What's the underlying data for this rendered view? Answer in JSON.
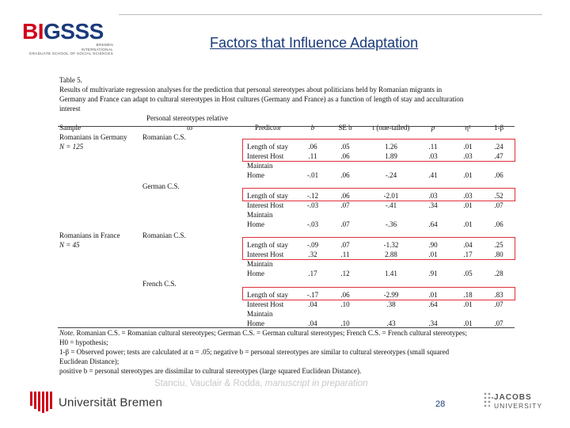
{
  "logo": {
    "bi": "BI",
    "gsss": "GSSS",
    "sub1": "BREMEN",
    "sub2": "INTERNATIONAL",
    "sub3": "GRADUATE SCHOOL OF SOCIAL SCIENCES"
  },
  "title": "Factors that Influence Adaptation",
  "table": {
    "caption_l1": "Table 5.",
    "caption_l2": "Results of multivariate regression analyses for the prediction that personal stereotypes about politicians held by Romanian migrants in",
    "caption_l3": "Germany and France can adapt to cultural stereotypes in Host cultures (Germany and France) as a function of length of stay and acculturation",
    "caption_l4": "interest",
    "headers": {
      "sample": "Sample",
      "personal_l1": "Personal stereotypes relative",
      "personal_l2": "to",
      "predictor": "Predictor",
      "b": "b",
      "se": "SE b",
      "t": "t (one-tailed)",
      "p": "p",
      "eta": "η²",
      "power": "1-β"
    },
    "sample_germany": "Romanians in Germany",
    "n_germany": "N = 125",
    "sample_france": "Romanians in France",
    "n_france": "N = 45",
    "stereotype_romanian": "Romanian C.S.",
    "stereotype_german": "German C.S.",
    "stereotype_french": "French C.S.",
    "pred_length": "Length of stay",
    "pred_interest": "Interest Host",
    "pred_maintain": "Maintain",
    "pred_home": "Home",
    "rows": [
      {
        "b1": ".06",
        "b2": ".11",
        "bh": "-.01",
        "se1": ".05",
        "se2": ".06",
        "seh": ".06",
        "t1": "1.26",
        "t2": "1.89",
        "th": "-.24",
        "p1": ".11",
        "p2": ".03",
        "ph": ".41",
        "e1": ".01",
        "e2": ".03",
        "eh": ".01",
        "w1": ".24",
        "w2": ".47",
        "wh": ".06"
      },
      {
        "b1": "-.12",
        "b2": "-.03",
        "bh": "-.03",
        "se1": ".06",
        "se2": ".07",
        "seh": ".07",
        "t1": "-2.01",
        "t2": "-.41",
        "th": "-.36",
        "p1": ".03",
        "p2": ".34",
        "ph": ".64",
        "e1": ".03",
        "e2": ".01",
        "eh": ".01",
        "w1": ".52",
        "w2": ".07",
        "wh": ".06"
      },
      {
        "b1": "-.09",
        "b2": ".32",
        "bh": ".17",
        "se1": ".07",
        "se2": ".11",
        "seh": ".12",
        "t1": "-1.32",
        "t2": "2.88",
        "th": "1.41",
        "p1": ".90",
        "p2": ".01",
        "ph": ".91",
        "e1": ".04",
        "e2": ".17",
        "eh": ".05",
        "w1": ".25",
        "w2": ".80",
        "wh": ".28"
      },
      {
        "b1": "-.17",
        "b2": ".04",
        "bh": ".04",
        "se1": ".06",
        "se2": ".10",
        "seh": ".10",
        "t1": "-2.99",
        "t2": ".38",
        "th": ".43",
        "p1": ".01",
        "p2": ".64",
        "ph": ".34",
        "e1": ".18",
        "e2": ".01",
        "eh": ".01",
        "w1": ".83",
        "w2": ".07",
        "wh": ".07"
      }
    ],
    "note_label": "Note.",
    "note_l1": "Romanian C.S. = Romanian cultural stereotypes; German C.S. = German cultural stereotypes; French C.S. = French cultural stereotypes;",
    "note_l2": "H0 = hypothesis;",
    "note_l3": "1-β = Observed power; tests are calculated at α = .05; negative b = personal stereotypes are similar to cultural stereotypes (small squared",
    "note_l4": "Euclidean Distance);",
    "note_l5": "positive b = personal stereotypes are dissimilar to cultural stereotypes (large squared Euclidean Distance)."
  },
  "citation_authors": "Stanciu, Vauclair & Rodda, ",
  "citation_status": "manuscript in preparation",
  "university": "Universität Bremen",
  "page_number": "28",
  "jacobs_l1": "JACOBS",
  "jacobs_l2": "UNIVERSITY",
  "colors": {
    "brand_blue": "#1a3a7a",
    "brand_red": "#d0011b",
    "highlight_red": "#e0303a"
  }
}
